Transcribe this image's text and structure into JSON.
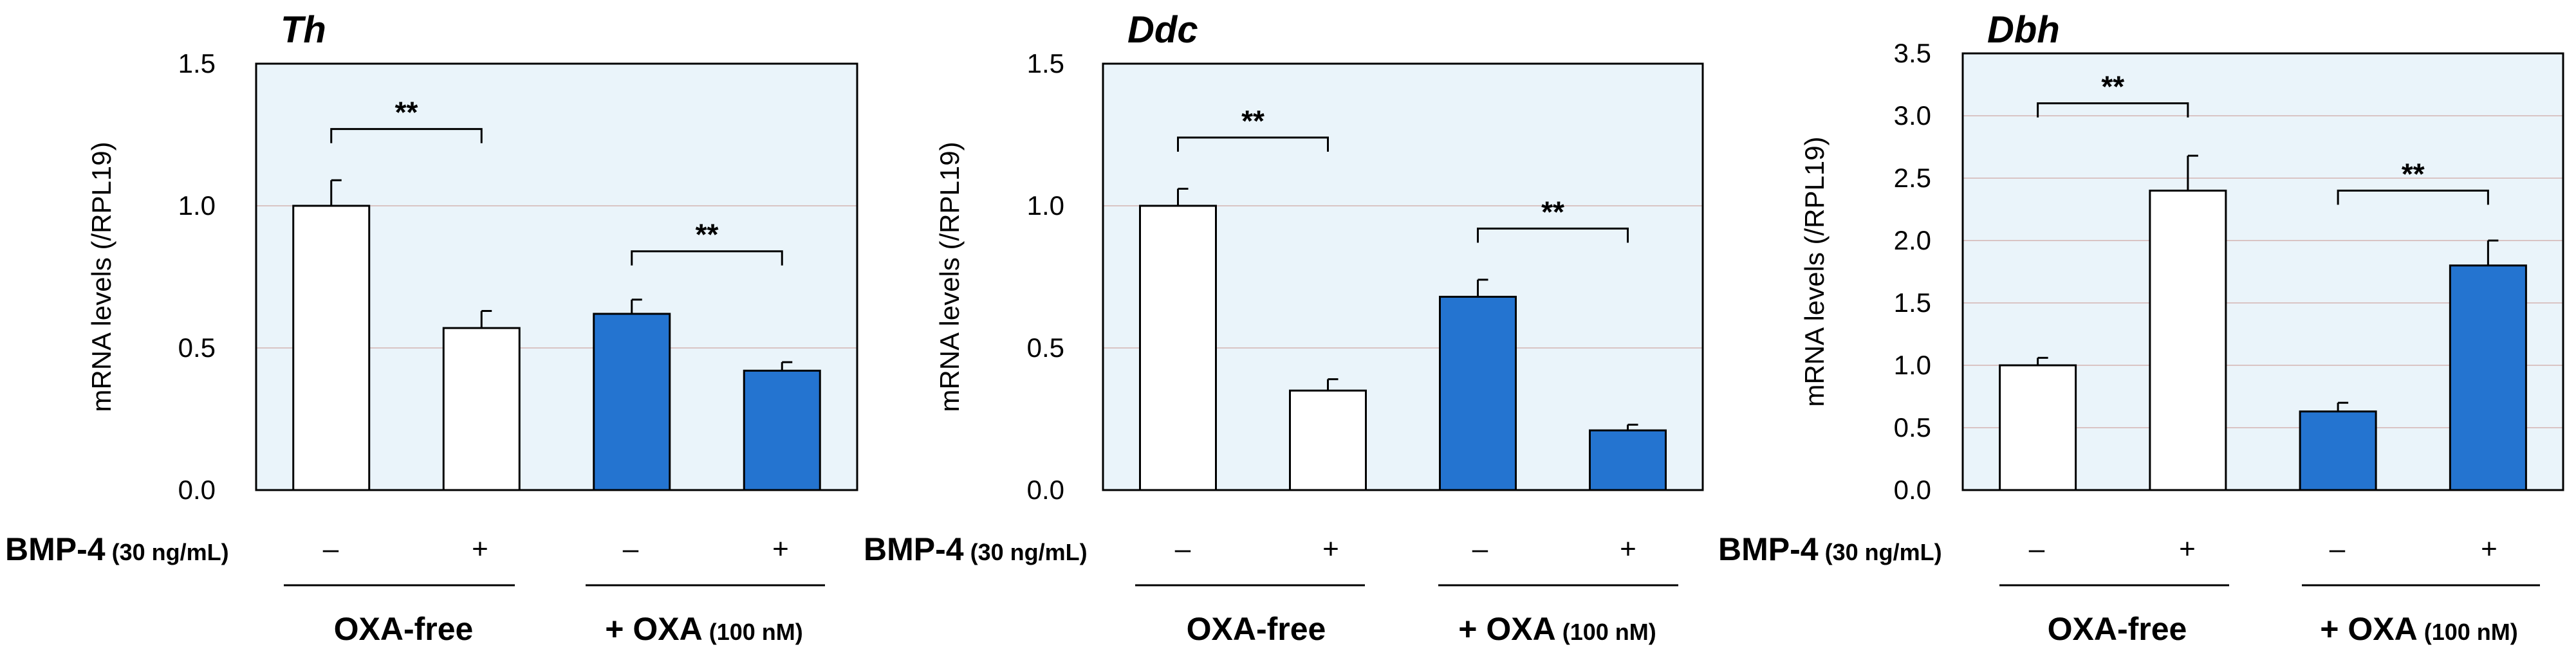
{
  "figure": {
    "bmp_label": "BMP-4",
    "bmp_conc": "(30 ng/mL)",
    "minus": "–",
    "plus": "+",
    "group1_label": "OXA-free",
    "group2_label": "+ OXA",
    "group2_conc": "(100 nM)",
    "significance": "**"
  },
  "colors": {
    "plot_bg": "#eaf4fa",
    "gridline": "#d9c4c4",
    "white_bar": "#ffffff",
    "blue_bar": "#2474d0",
    "frame": "#000000"
  },
  "chart_data": [
    {
      "type": "bar",
      "title": "Th",
      "ylabel": "mRNA levels (/RPL19)",
      "xlabel": "",
      "ylim": [
        0,
        1.5
      ],
      "yticks": [
        "0.0",
        "0.5",
        "1.0",
        "1.5"
      ],
      "categories": [
        "OXA-free / BMP-4 –",
        "OXA-free / BMP-4 +",
        "+ OXA / BMP-4 –",
        "+ OXA / BMP-4 +"
      ],
      "values": [
        1.0,
        0.57,
        0.62,
        0.42
      ],
      "errors": [
        0.09,
        0.06,
        0.05,
        0.03
      ],
      "bar_colors": [
        "white",
        "white",
        "blue",
        "blue"
      ],
      "significance": [
        {
          "bars": [
            0,
            1
          ],
          "label": "**",
          "y": 1.27
        },
        {
          "bars": [
            2,
            3
          ],
          "label": "**",
          "y": 0.84
        }
      ]
    },
    {
      "type": "bar",
      "title": "Ddc",
      "ylabel": "mRNA levels (/RPL19)",
      "xlabel": "",
      "ylim": [
        0,
        1.5
      ],
      "yticks": [
        "0.0",
        "0.5",
        "1.0",
        "1.5"
      ],
      "categories": [
        "OXA-free / BMP-4 –",
        "OXA-free / BMP-4 +",
        "+ OXA / BMP-4 –",
        "+ OXA / BMP-4 +"
      ],
      "values": [
        1.0,
        0.35,
        0.68,
        0.21
      ],
      "errors": [
        0.06,
        0.04,
        0.06,
        0.02
      ],
      "bar_colors": [
        "white",
        "white",
        "blue",
        "blue"
      ],
      "significance": [
        {
          "bars": [
            0,
            1
          ],
          "label": "**",
          "y": 1.24
        },
        {
          "bars": [
            2,
            3
          ],
          "label": "**",
          "y": 0.92
        }
      ]
    },
    {
      "type": "bar",
      "title": "Dbh",
      "ylabel": "mRNA levels (/RPL19)",
      "xlabel": "",
      "ylim": [
        0,
        3.5
      ],
      "yticks": [
        "0.0",
        "0.5",
        "1.0",
        "1.5",
        "2.0",
        "2.5",
        "3.0",
        "3.5"
      ],
      "categories": [
        "OXA-free / BMP-4 –",
        "OXA-free / BMP-4 +",
        "+ OXA / BMP-4 –",
        "+ OXA / BMP-4 +"
      ],
      "values": [
        1.0,
        2.4,
        0.63,
        1.8
      ],
      "errors": [
        0.06,
        0.28,
        0.07,
        0.2
      ],
      "bar_colors": [
        "white",
        "white",
        "blue",
        "blue"
      ],
      "significance": [
        {
          "bars": [
            0,
            1
          ],
          "label": "**",
          "y": 3.1
        },
        {
          "bars": [
            2,
            3
          ],
          "label": "**",
          "y": 2.4
        }
      ]
    }
  ]
}
